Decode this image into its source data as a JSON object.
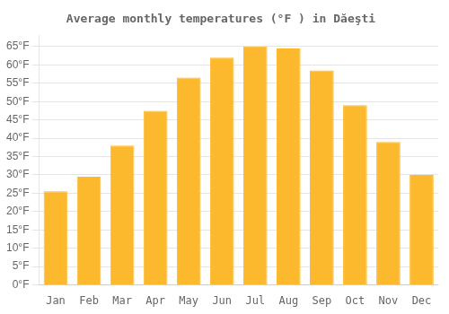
{
  "chart_data": {
    "type": "bar",
    "title": "Average monthly temperatures (°F ) in Dăeşti",
    "categories": [
      "Jan",
      "Feb",
      "Mar",
      "Apr",
      "May",
      "Jun",
      "Jul",
      "Aug",
      "Sep",
      "Oct",
      "Nov",
      "Dec"
    ],
    "values": [
      25.5,
      29.5,
      38,
      47.5,
      56.5,
      62,
      65,
      64.5,
      58.5,
      49,
      39,
      30
    ],
    "color": "#FDB92E",
    "ylim": [
      0,
      68
    ],
    "yticks": [
      {
        "value": 0,
        "label": "0°F"
      },
      {
        "value": 5,
        "label": "5°F"
      },
      {
        "value": 10,
        "label": "10°F"
      },
      {
        "value": 15,
        "label": "15°F"
      },
      {
        "value": 20,
        "label": "20°F"
      },
      {
        "value": 25,
        "label": "25°F"
      },
      {
        "value": 30,
        "label": "30°F"
      },
      {
        "value": 35,
        "label": "35°F"
      },
      {
        "value": 40,
        "label": "40°F"
      },
      {
        "value": 45,
        "label": "45°F"
      },
      {
        "value": 50,
        "label": "50°F"
      },
      {
        "value": 55,
        "label": "55°F"
      },
      {
        "value": 60,
        "label": "60°F"
      },
      {
        "value": 65,
        "label": "65°F"
      }
    ],
    "grid": true
  }
}
